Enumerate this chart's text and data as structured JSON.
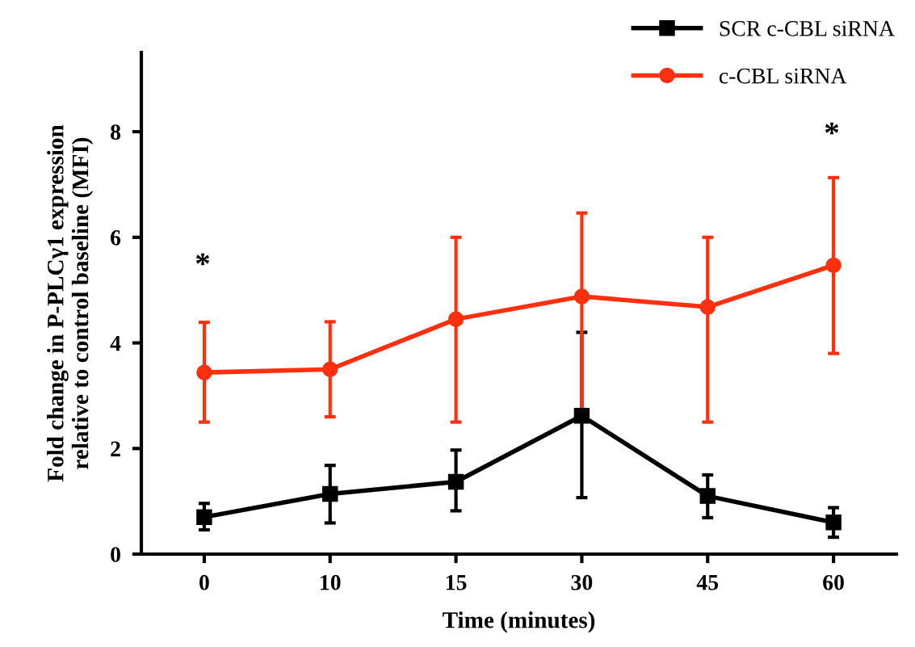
{
  "chart_data": {
    "type": "line",
    "xlabel": "Time (minutes)",
    "ylabel": "Fold change in P-PLCγ1 expression\nrelative to control baseline (MFI)",
    "categories": [
      "0",
      "10",
      "15",
      "30",
      "45",
      "60"
    ],
    "ylim": [
      0,
      9.5
    ],
    "yticks": [
      0,
      2,
      4,
      6,
      8
    ],
    "grid": false,
    "legend": "top right",
    "line_style": "solid",
    "series": [
      {
        "name": "SCR c-CBL siRNA",
        "color": "#000000",
        "marker": "square",
        "values": [
          0.7,
          1.14,
          1.37,
          2.62,
          1.1,
          0.6
        ],
        "errors": [
          [
            0.46,
            0.96
          ],
          [
            0.59,
            1.68
          ],
          [
            0.82,
            1.97
          ],
          [
            1.07,
            4.2
          ],
          [
            0.69,
            1.5
          ],
          [
            0.32,
            0.88
          ]
        ]
      },
      {
        "name": "c-CBL siRNA",
        "color": "#ff3010",
        "marker": "circle",
        "values": [
          3.44,
          3.5,
          4.45,
          4.88,
          4.68,
          5.47
        ],
        "errors": [
          [
            2.5,
            4.39
          ],
          [
            2.6,
            4.4
          ],
          [
            2.5,
            6.0
          ],
          [
            2.74,
            6.46
          ],
          [
            2.5,
            6.0
          ],
          [
            3.8,
            7.13
          ]
        ]
      }
    ],
    "annotations": [
      "*",
      "*"
    ]
  }
}
